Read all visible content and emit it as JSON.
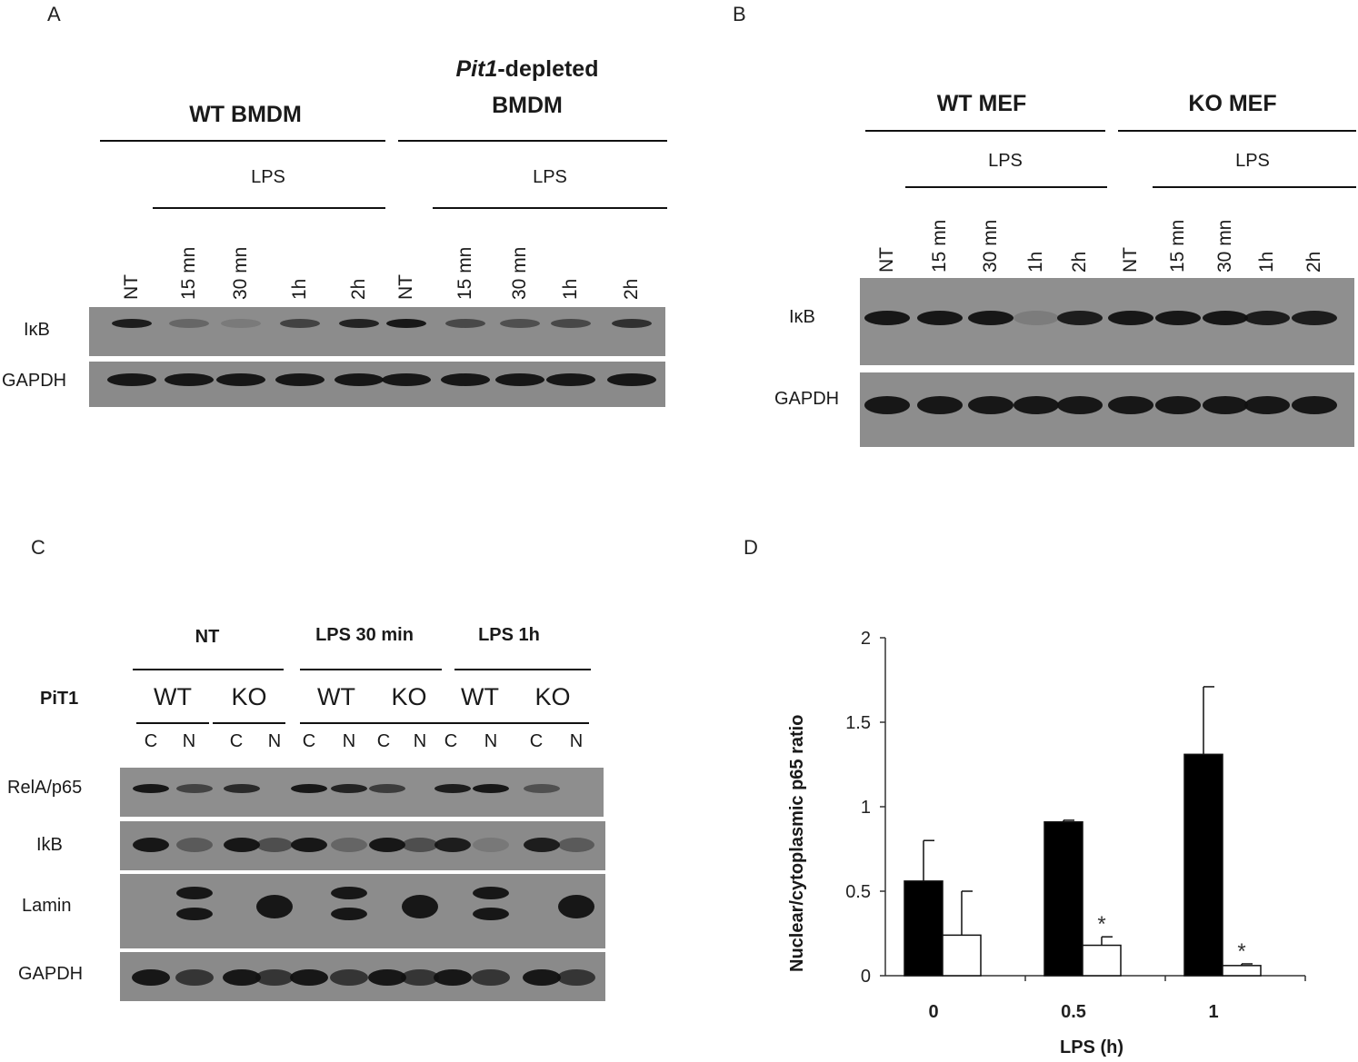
{
  "panelA": {
    "letter": "A",
    "group1": "WT BMDM",
    "group2_italic": "Pit1",
    "group2_rest": "-depleted",
    "group2_line2": "BMDM",
    "lps": "LPS",
    "lanes": [
      "NT",
      "15 mn",
      "30 mn",
      "1h",
      "2h",
      "NT",
      "15 mn",
      "30 mn",
      "1h",
      "2h"
    ],
    "rows": [
      "IκB",
      "GAPDH"
    ]
  },
  "panelB": {
    "letter": "B",
    "group1": "WT MEF",
    "group2": "KO MEF",
    "lps": "LPS",
    "lanes": [
      "NT",
      "15 mn",
      "30 mn",
      "1h",
      "2h",
      "NT",
      "15 mn",
      "30 mn",
      "1h",
      "2h"
    ],
    "rows": [
      "IκB",
      "GAPDH"
    ]
  },
  "panelC": {
    "letter": "C",
    "conditions": [
      "NT",
      "LPS 30 min",
      "LPS 1h"
    ],
    "pit_label": "PiT1",
    "genotypes": [
      "WT",
      "KO",
      "WT",
      "KO",
      "WT",
      "KO"
    ],
    "fractions": [
      "C",
      "N",
      "C",
      "N",
      "C",
      "N",
      "C",
      "N",
      "C",
      "N",
      "C",
      "N"
    ],
    "rows": [
      "RelA/p65",
      "IkB",
      "Lamin",
      "GAPDH"
    ]
  },
  "panelD": {
    "letter": "D",
    "chart_data": {
      "type": "bar",
      "categories": [
        "0",
        "0.5",
        "1"
      ],
      "series": [
        {
          "color": "#000000",
          "values": [
            0.56,
            0.91,
            1.31
          ],
          "errors": [
            0.24,
            0.01,
            0.4
          ]
        },
        {
          "color": "#ffffff",
          "values": [
            0.24,
            0.18,
            0.06
          ],
          "errors": [
            0.26,
            0.05,
            0.01
          ]
        }
      ],
      "annotations": [
        "",
        "*",
        "*"
      ],
      "ylabel": "Nuclear/cytoplasmic p65 ratio",
      "xlabel": "LPS (h)",
      "yticks": [
        "0",
        "0.5",
        "1",
        "1.5",
        "2"
      ],
      "ylim": [
        0,
        2
      ]
    }
  }
}
